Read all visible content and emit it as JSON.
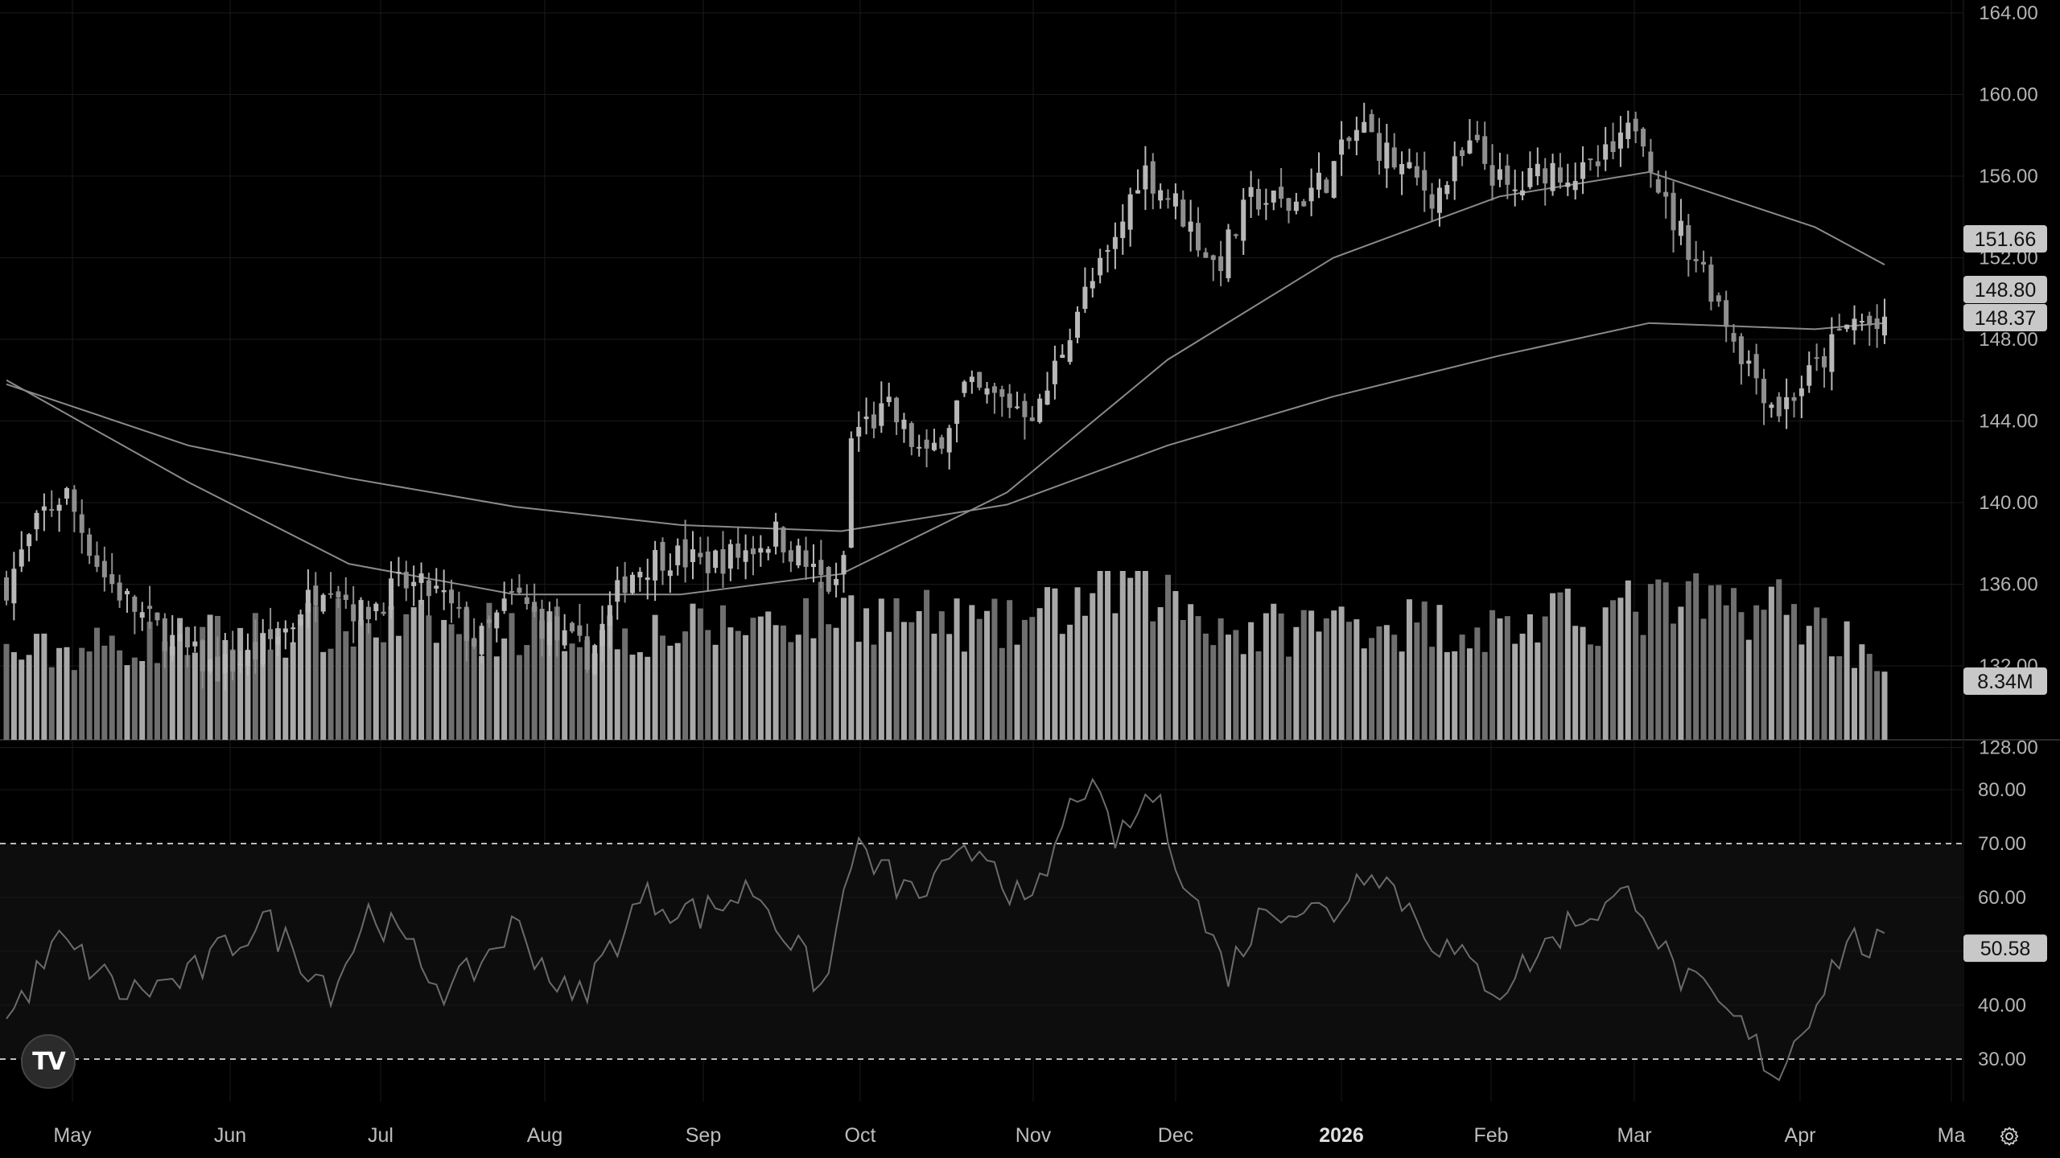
{
  "logo": {
    "text": "TV"
  },
  "icons": {
    "settings": "settings-gear-icon",
    "logo": "tradingview-logo-icon"
  },
  "colors": {
    "background": "#000000",
    "grid": "#1a1a1a",
    "candle": "#b8b8b8",
    "volume": "#9a9a9a",
    "ma": "#8a8a8a",
    "rsi": "#6b6b6b",
    "label_bg": "#c8c8c8"
  },
  "chart_data": [
    {
      "type": "candlestick",
      "title": "",
      "price_axis": {
        "range": [
          132,
          164
        ],
        "ticks": [
          "164.00",
          "160.00",
          "156.00",
          "152.00",
          "148.00",
          "144.00",
          "140.00",
          "136.00",
          "132.00",
          "128.00"
        ]
      },
      "time_axis": {
        "labels": [
          "May",
          "Jun",
          "Jul",
          "Aug",
          "Sep",
          "Oct",
          "Nov",
          "Dec",
          "2026",
          "Feb",
          "Mar",
          "Apr",
          "Ma"
        ],
        "highlight": "2026"
      },
      "price_labels": [
        {
          "text": "151.66",
          "value": 151.66
        },
        {
          "text": "148.80",
          "value": 148.8
        },
        {
          "text": "148.37",
          "value": 148.37
        }
      ],
      "close_path": [
        {
          "date": "2025-04-28",
          "close": 136.0
        },
        {
          "date": "2025-05-05",
          "close": 139.5
        },
        {
          "date": "2025-05-09",
          "close": 140.5
        },
        {
          "date": "2025-05-16",
          "close": 136.5
        },
        {
          "date": "2025-05-23",
          "close": 134.5
        },
        {
          "date": "2025-05-30",
          "close": 133.0
        },
        {
          "date": "2025-06-06",
          "close": 131.8
        },
        {
          "date": "2025-06-13",
          "close": 132.5
        },
        {
          "date": "2025-06-20",
          "close": 134.0
        },
        {
          "date": "2025-06-27",
          "close": 136.5
        },
        {
          "date": "2025-07-03",
          "close": 134.5
        },
        {
          "date": "2025-07-11",
          "close": 136.0
        },
        {
          "date": "2025-07-18",
          "close": 135.5
        },
        {
          "date": "2025-07-25",
          "close": 133.0
        },
        {
          "date": "2025-08-01",
          "close": 135.5
        },
        {
          "date": "2025-08-08",
          "close": 133.5
        },
        {
          "date": "2025-08-15",
          "close": 132.5
        },
        {
          "date": "2025-08-22",
          "close": 136.5
        },
        {
          "date": "2025-08-29",
          "close": 137.5
        },
        {
          "date": "2025-09-05",
          "close": 137.0
        },
        {
          "date": "2025-09-12",
          "close": 137.5
        },
        {
          "date": "2025-09-19",
          "close": 138.5
        },
        {
          "date": "2025-09-26",
          "close": 136.5
        },
        {
          "date": "2025-10-01",
          "close": 135.5
        },
        {
          "date": "2025-10-03",
          "close": 143.5
        },
        {
          "date": "2025-10-10",
          "close": 144.5
        },
        {
          "date": "2025-10-17",
          "close": 142.0
        },
        {
          "date": "2025-10-24",
          "close": 145.5
        },
        {
          "date": "2025-10-31",
          "close": 145.0
        },
        {
          "date": "2025-11-07",
          "close": 144.5
        },
        {
          "date": "2025-11-14",
          "close": 149.5
        },
        {
          "date": "2025-11-21",
          "close": 152.5
        },
        {
          "date": "2025-11-26",
          "close": 156.5
        },
        {
          "date": "2025-12-03",
          "close": 154.5
        },
        {
          "date": "2025-12-10",
          "close": 151.5
        },
        {
          "date": "2025-12-17",
          "close": 155.0
        },
        {
          "date": "2025-12-24",
          "close": 154.5
        },
        {
          "date": "2025-12-31",
          "close": 156.0
        },
        {
          "date": "2026-01-06",
          "close": 158.5
        },
        {
          "date": "2026-01-13",
          "close": 156.5
        },
        {
          "date": "2026-01-20",
          "close": 155.0
        },
        {
          "date": "2026-01-27",
          "close": 157.5
        },
        {
          "date": "2026-02-03",
          "close": 155.0
        },
        {
          "date": "2026-02-10",
          "close": 156.5
        },
        {
          "date": "2026-02-17",
          "close": 156.0
        },
        {
          "date": "2026-02-24",
          "close": 157.5
        },
        {
          "date": "2026-02-27",
          "close": 159.0
        },
        {
          "date": "2026-03-04",
          "close": 154.5
        },
        {
          "date": "2026-03-11",
          "close": 151.5
        },
        {
          "date": "2026-03-18",
          "close": 147.5
        },
        {
          "date": "2026-03-25",
          "close": 144.5
        },
        {
          "date": "2026-04-01",
          "close": 146.5
        },
        {
          "date": "2026-04-08",
          "close": 149.0
        },
        {
          "date": "2026-04-14",
          "close": 148.37
        }
      ],
      "moving_averages": [
        {
          "points": [
            {
              "date": "2025-04-28",
              "value": 146.0
            },
            {
              "date": "2025-06-01",
              "value": 141.0
            },
            {
              "date": "2025-07-01",
              "value": 137.0
            },
            {
              "date": "2025-08-01",
              "value": 135.5
            },
            {
              "date": "2025-09-01",
              "value": 135.5
            },
            {
              "date": "2025-10-01",
              "value": 136.5
            },
            {
              "date": "2025-11-01",
              "value": 140.5
            },
            {
              "date": "2025-12-01",
              "value": 147.0
            },
            {
              "date": "2026-01-01",
              "value": 152.0
            },
            {
              "date": "2026-02-01",
              "value": 155.0
            },
            {
              "date": "2026-03-01",
              "value": 156.2
            },
            {
              "date": "2026-04-01",
              "value": 153.5
            },
            {
              "date": "2026-04-14",
              "value": 151.66
            }
          ]
        },
        {
          "points": [
            {
              "date": "2025-04-28",
              "value": 145.8
            },
            {
              "date": "2025-06-01",
              "value": 142.8
            },
            {
              "date": "2025-07-01",
              "value": 141.2
            },
            {
              "date": "2025-08-01",
              "value": 139.8
            },
            {
              "date": "2025-09-01",
              "value": 138.9
            },
            {
              "date": "2025-10-01",
              "value": 138.6
            },
            {
              "date": "2025-11-01",
              "value": 139.9
            },
            {
              "date": "2025-12-01",
              "value": 142.8
            },
            {
              "date": "2026-01-01",
              "value": 145.2
            },
            {
              "date": "2026-02-01",
              "value": 147.2
            },
            {
              "date": "2026-03-01",
              "value": 148.8
            },
            {
              "date": "2026-04-01",
              "value": 148.5
            },
            {
              "date": "2026-04-14",
              "value": 148.8
            }
          ]
        }
      ]
    },
    {
      "type": "bar",
      "title": "",
      "label": {
        "text": "8.34M",
        "value": 8.34
      },
      "volume_path": [
        {
          "date": "2025-05-01",
          "volume": 8.9
        },
        {
          "date": "2025-06-01",
          "volume": 10.5
        },
        {
          "date": "2025-07-01",
          "volume": 11.8
        },
        {
          "date": "2025-08-01",
          "volume": 11.5
        },
        {
          "date": "2025-09-01",
          "volume": 11.2
        },
        {
          "date": "2025-10-01",
          "volume": 13.5
        },
        {
          "date": "2025-11-01",
          "volume": 11.5
        },
        {
          "date": "2025-11-25",
          "volume": 16.5
        },
        {
          "date": "2025-12-15",
          "volume": 11.0
        },
        {
          "date": "2026-01-05",
          "volume": 12.5
        },
        {
          "date": "2026-02-01",
          "volume": 11.5
        },
        {
          "date": "2026-03-01",
          "volume": 13.8
        },
        {
          "date": "2026-03-25",
          "volume": 14.0
        },
        {
          "date": "2026-04-14",
          "volume": 8.34
        }
      ]
    },
    {
      "type": "line",
      "title": "",
      "value_axis": {
        "range": [
          20,
          90
        ],
        "ticks": [
          "80.00",
          "70.00",
          "60.00",
          "50.00",
          "40.00",
          "30.00"
        ],
        "bands": [
          30,
          70
        ],
        "grid": true
      },
      "label": {
        "text": "50.58",
        "value": 50.58
      },
      "rsi_path": [
        {
          "date": "2025-04-28",
          "rsi": 37
        },
        {
          "date": "2025-05-08",
          "rsi": 52
        },
        {
          "date": "2025-05-20",
          "rsi": 42
        },
        {
          "date": "2025-06-01",
          "rsi": 45
        },
        {
          "date": "2025-06-15",
          "rsi": 56
        },
        {
          "date": "2025-06-28",
          "rsi": 43
        },
        {
          "date": "2025-07-05",
          "rsi": 58
        },
        {
          "date": "2025-07-20",
          "rsi": 42
        },
        {
          "date": "2025-08-01",
          "rsi": 55
        },
        {
          "date": "2025-08-12",
          "rsi": 40
        },
        {
          "date": "2025-08-25",
          "rsi": 60
        },
        {
          "date": "2025-09-05",
          "rsi": 57
        },
        {
          "date": "2025-09-15",
          "rsi": 62
        },
        {
          "date": "2025-09-28",
          "rsi": 42
        },
        {
          "date": "2025-10-03",
          "rsi": 69
        },
        {
          "date": "2025-10-15",
          "rsi": 60
        },
        {
          "date": "2025-10-28",
          "rsi": 70
        },
        {
          "date": "2025-11-05",
          "rsi": 56
        },
        {
          "date": "2025-11-15",
          "rsi": 82
        },
        {
          "date": "2025-11-22",
          "rsi": 70
        },
        {
          "date": "2025-11-28",
          "rsi": 80
        },
        {
          "date": "2025-12-05",
          "rsi": 62
        },
        {
          "date": "2025-12-12",
          "rsi": 46
        },
        {
          "date": "2025-12-20",
          "rsi": 59
        },
        {
          "date": "2026-01-01",
          "rsi": 57
        },
        {
          "date": "2026-01-08",
          "rsi": 67
        },
        {
          "date": "2026-01-20",
          "rsi": 52
        },
        {
          "date": "2026-02-01",
          "rsi": 43
        },
        {
          "date": "2026-02-15",
          "rsi": 56
        },
        {
          "date": "2026-02-27",
          "rsi": 61
        },
        {
          "date": "2026-03-05",
          "rsi": 47
        },
        {
          "date": "2026-03-18",
          "rsi": 36
        },
        {
          "date": "2026-03-25",
          "rsi": 27
        },
        {
          "date": "2026-04-01",
          "rsi": 41
        },
        {
          "date": "2026-04-07",
          "rsi": 52
        },
        {
          "date": "2026-04-14",
          "rsi": 50.58
        }
      ]
    }
  ]
}
